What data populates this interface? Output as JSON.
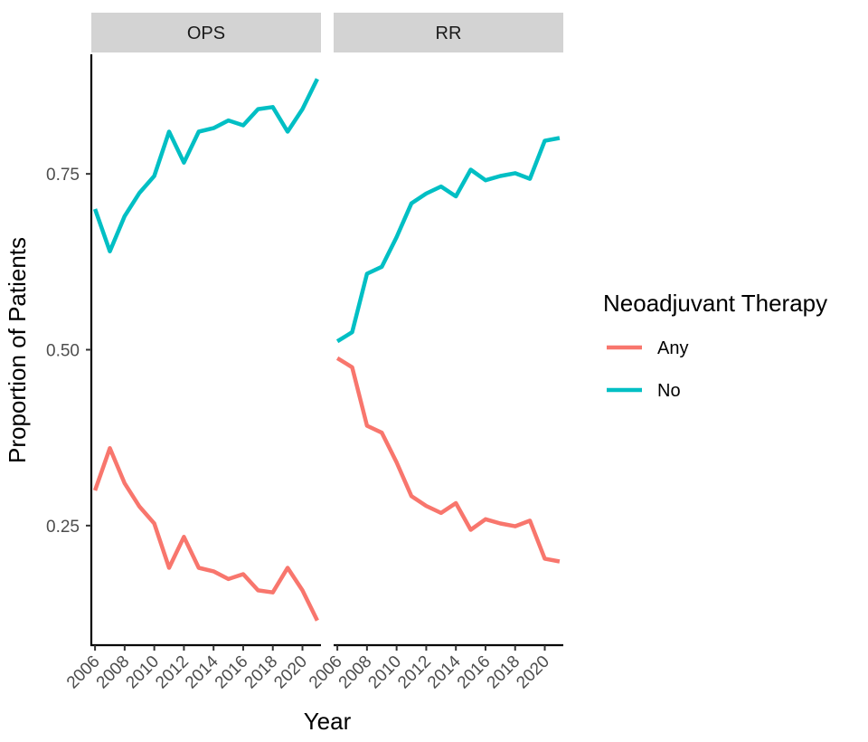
{
  "chart_data": {
    "type": "line",
    "facets": [
      {
        "label": "OPS",
        "series": [
          {
            "name": "Any",
            "x": [
              2006,
              2007,
              2008,
              2009,
              2010,
              2011,
              2012,
              2013,
              2014,
              2015,
              2016,
              2017,
              2018,
              2019,
              2020,
              2021
            ],
            "values": [
              0.3,
              0.36,
              0.31,
              0.277,
              0.253,
              0.19,
              0.234,
              0.19,
              0.185,
              0.174,
              0.181,
              0.158,
              0.155,
              0.19,
              0.158,
              0.115
            ]
          },
          {
            "name": "No",
            "x": [
              2006,
              2007,
              2008,
              2009,
              2010,
              2011,
              2012,
              2013,
              2014,
              2015,
              2016,
              2017,
              2018,
              2019,
              2020,
              2021
            ],
            "values": [
              0.7,
              0.64,
              0.69,
              0.723,
              0.747,
              0.81,
              0.766,
              0.81,
              0.815,
              0.826,
              0.819,
              0.842,
              0.845,
              0.81,
              0.842,
              0.885
            ]
          }
        ]
      },
      {
        "label": "RR",
        "series": [
          {
            "name": "Any",
            "x": [
              2006,
              2007,
              2008,
              2009,
              2010,
              2011,
              2012,
              2013,
              2014,
              2015,
              2016,
              2017,
              2018,
              2019,
              2020,
              2021
            ],
            "values": [
              0.488,
              0.475,
              0.392,
              0.382,
              0.34,
              0.292,
              0.278,
              0.268,
              0.282,
              0.244,
              0.259,
              0.253,
              0.249,
              0.257,
              0.203,
              0.199
            ]
          },
          {
            "name": "No",
            "x": [
              2006,
              2007,
              2008,
              2009,
              2010,
              2011,
              2012,
              2013,
              2014,
              2015,
              2016,
              2017,
              2018,
              2019,
              2020,
              2021
            ],
            "values": [
              0.512,
              0.525,
              0.608,
              0.618,
              0.66,
              0.708,
              0.722,
              0.732,
              0.718,
              0.756,
              0.741,
              0.747,
              0.751,
              0.743,
              0.797,
              0.801
            ]
          }
        ]
      }
    ],
    "xlabel": "Year",
    "ylabel": "Proportion of Patients",
    "x_ticks": [
      "2006",
      "2008",
      "2010",
      "2012",
      "2014",
      "2016",
      "2018",
      "2020"
    ],
    "y_ticks": [
      "0.25",
      "0.50",
      "0.75"
    ],
    "xlim": [
      2005.75,
      2021.25
    ],
    "ylim": [
      0.08,
      0.92
    ],
    "legend": {
      "title": "Neoadjuvant Therapy",
      "placement": "right",
      "entries": [
        {
          "label": "Any",
          "color": "#F8766D"
        },
        {
          "label": "No",
          "color": "#00BFC4"
        }
      ]
    },
    "colors": {
      "Any": "#F8766D",
      "No": "#00BFC4"
    },
    "grid": false
  }
}
